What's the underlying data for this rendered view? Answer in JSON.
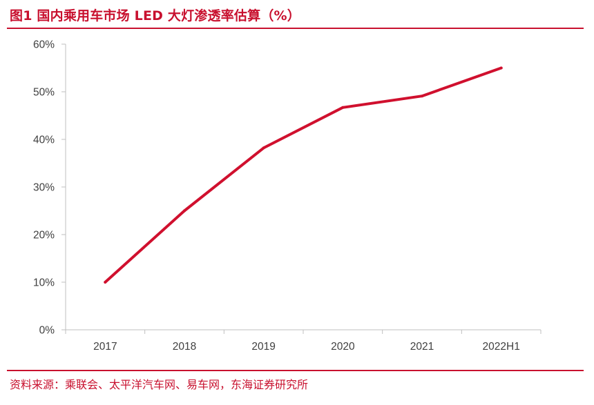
{
  "header": {
    "title": "图1  国内乘用车市场 LED 大灯渗透率估算（%）"
  },
  "footer": {
    "source": "资料来源：乘联会、太平洋汽车网、易车网，东海证券研究所"
  },
  "colors": {
    "accent": "#c8102e",
    "line": "#d0102e",
    "axis": "#bfbfbf",
    "text": "#404040"
  },
  "chart_data": {
    "type": "line",
    "categories": [
      "2017",
      "2018",
      "2019",
      "2020",
      "2021",
      "2022H1"
    ],
    "series": [
      {
        "values": [
          0.1,
          0.25,
          0.382,
          0.467,
          0.491,
          0.55
        ]
      }
    ],
    "ylim": [
      0,
      0.6
    ],
    "yticks": [
      0,
      0.1,
      0.2,
      0.3,
      0.4,
      0.5,
      0.6
    ],
    "ytick_labels": [
      "0%",
      "10%",
      "20%",
      "30%",
      "40%",
      "50%",
      "60%"
    ],
    "grid": false,
    "legend": "none"
  }
}
